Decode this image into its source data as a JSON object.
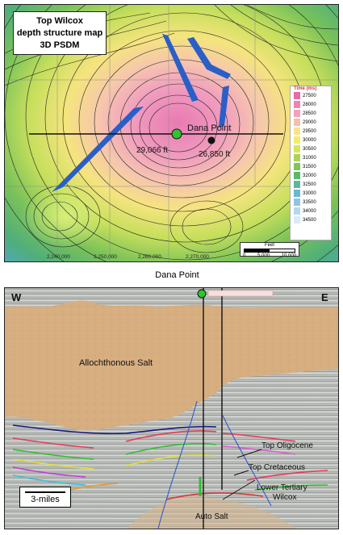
{
  "map": {
    "title_line1": "Top Wilcox",
    "title_line2": "depth structure map",
    "title_line3": "3D PSDM",
    "well_label": "Dana Point",
    "depth_a": "29,066 ft",
    "depth_b": "26,850 ft",
    "x_ticks": [
      "2,240,000",
      "2,250,000",
      "2,260,000",
      "2,270,000"
    ],
    "scale_title": "Feet",
    "scale_ticks": [
      "0",
      "5,000",
      "10,000"
    ],
    "legend": {
      "title": "Time (ms)",
      "entries": [
        {
          "label": "27500",
          "color": "#e86aa8"
        },
        {
          "label": "28000",
          "color": "#ef84b4"
        },
        {
          "label": "28500",
          "color": "#f3a1b9"
        },
        {
          "label": "29000",
          "color": "#f6c0a8"
        },
        {
          "label": "29500",
          "color": "#fbe38a"
        },
        {
          "label": "30000",
          "color": "#f2ee6b"
        },
        {
          "label": "30500",
          "color": "#d5e65c"
        },
        {
          "label": "31000",
          "color": "#a9d556"
        },
        {
          "label": "31500",
          "color": "#7fc655"
        },
        {
          "label": "32000",
          "color": "#5bb86b"
        },
        {
          "label": "32500",
          "color": "#5cb6a3"
        },
        {
          "label": "33000",
          "color": "#6cb6d2"
        },
        {
          "label": "33500",
          "color": "#90c4e6"
        },
        {
          "label": "34000",
          "color": "#b6d8ef"
        },
        {
          "label": "34500",
          "color": "#dbeaf5"
        }
      ]
    }
  },
  "seismic": {
    "well_title": "Dana Point",
    "west_label": "W",
    "east_label": "E",
    "salt_label": "Allochthonous Salt",
    "oligocene_label": "Top Oligocene",
    "cretaceous_label": "Top Cretaceous",
    "lower_tertiary_label": "Lower Tertiary",
    "wilcox_label": "Wilcox",
    "auto_salt_label": "Auto Salt",
    "scale_label": "3-miles"
  }
}
